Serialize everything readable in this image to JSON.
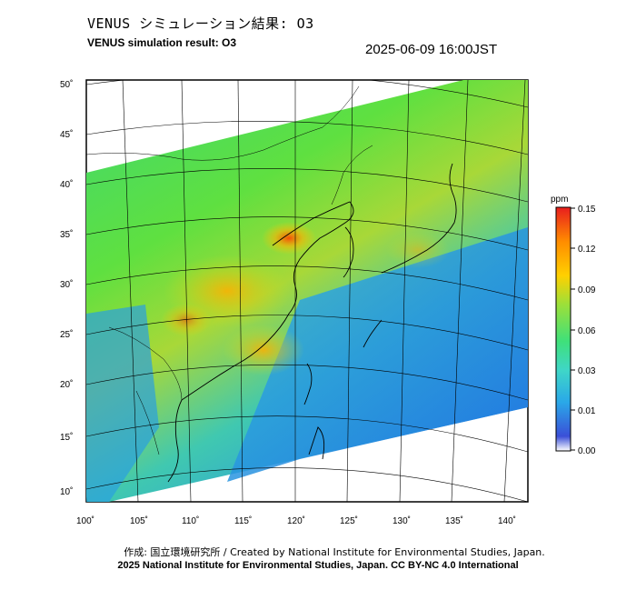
{
  "header": {
    "title_ja": "VENUS シミュレーション結果: O3",
    "title_en": "VENUS simulation result: O3",
    "timestamp": "2025-06-09 16:00JST"
  },
  "map": {
    "lat_labels": [
      "50˚",
      "45˚",
      "40˚",
      "35˚",
      "30˚",
      "25˚",
      "20˚",
      "15˚",
      "10˚"
    ],
    "lon_labels": [
      "100˚",
      "105˚",
      "110˚",
      "115˚",
      "120˚",
      "125˚",
      "130˚",
      "135˚",
      "140˚"
    ]
  },
  "colorbar": {
    "unit": "ppm",
    "ticks": [
      "0.15",
      "0.12",
      "0.09",
      "0.06",
      "0.03",
      "0.01",
      "0.00"
    ],
    "colors": [
      "#ffffff",
      "#3a4fd8",
      "#2aa8e8",
      "#3fd6c8",
      "#3fe07a",
      "#9be03a",
      "#ffd000",
      "#ff8c00",
      "#e81e1e"
    ]
  },
  "footer": {
    "credit_ja": "作成: 国立環境研究所 / Created by National Institute for Environmental Studies, Japan.",
    "credit_en": "2025 National Institute for Environmental Studies, Japan. CC BY-NC 4.0 International"
  }
}
